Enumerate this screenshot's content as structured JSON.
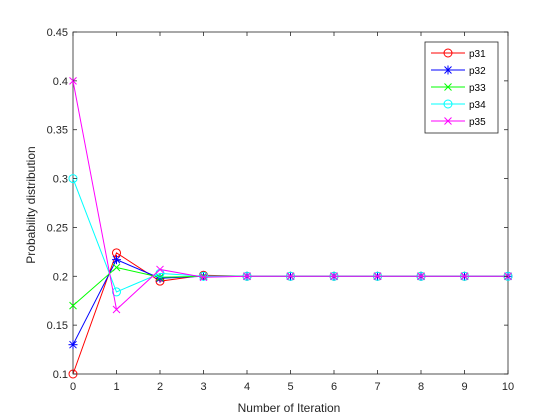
{
  "chart_data": {
    "type": "line",
    "title": "",
    "xlabel": "Number of Iteration",
    "ylabel": "Probability distribution",
    "x": [
      0,
      1,
      2,
      3,
      4,
      5,
      6,
      7,
      8,
      9,
      10
    ],
    "xlim": [
      0,
      10
    ],
    "ylim": [
      0.1,
      0.45
    ],
    "xticks": [
      "0",
      "1",
      "2",
      "3",
      "4",
      "5",
      "6",
      "7",
      "8",
      "9",
      "10"
    ],
    "yticks": [
      "0.1",
      "0.15",
      "0.2",
      "0.25",
      "0.3",
      "0.35",
      "0.4",
      "0.45"
    ],
    "grid": false,
    "legend_position": "top-right",
    "series": [
      {
        "name": "p31",
        "color": "#ff0000",
        "marker": "circle",
        "values": [
          0.1,
          0.224,
          0.195,
          0.201,
          0.2,
          0.2,
          0.2,
          0.2,
          0.2,
          0.2,
          0.2
        ]
      },
      {
        "name": "p32",
        "color": "#0000ff",
        "marker": "star",
        "values": [
          0.13,
          0.217,
          0.198,
          0.2,
          0.2,
          0.2,
          0.2,
          0.2,
          0.2,
          0.2,
          0.2
        ]
      },
      {
        "name": "p33",
        "color": "#00ff00",
        "marker": "x",
        "values": [
          0.17,
          0.209,
          0.199,
          0.2,
          0.2,
          0.2,
          0.2,
          0.2,
          0.2,
          0.2,
          0.2
        ]
      },
      {
        "name": "p34",
        "color": "#00ffff",
        "marker": "circle",
        "values": [
          0.3,
          0.184,
          0.203,
          0.2,
          0.2,
          0.2,
          0.2,
          0.2,
          0.2,
          0.2,
          0.2
        ]
      },
      {
        "name": "p35",
        "color": "#ff00ff",
        "marker": "x",
        "values": [
          0.4,
          0.166,
          0.207,
          0.199,
          0.2,
          0.2,
          0.2,
          0.2,
          0.2,
          0.2,
          0.2
        ]
      }
    ]
  }
}
